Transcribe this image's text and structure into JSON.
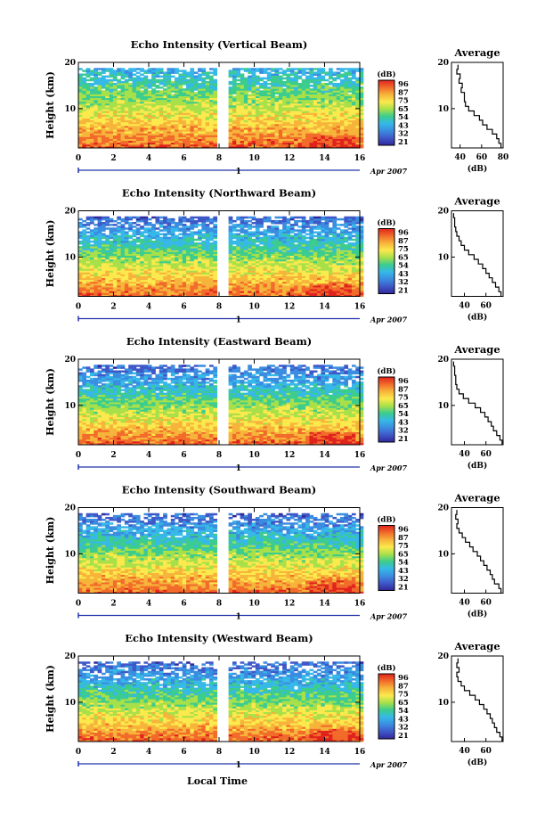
{
  "figure": {
    "xlabel": "Local Time",
    "date_label": "Apr 2007",
    "day_marker_label": "1",
    "colorbar": {
      "unit_label": "(dB)",
      "tick_labels": [
        "96",
        "87",
        "75",
        "65",
        "54",
        "43",
        "32",
        "21"
      ],
      "colors": [
        "#e0231d",
        "#f26b2a",
        "#f7b43b",
        "#fce94d",
        "#a8e04a",
        "#3ccc8e",
        "#36b8e8",
        "#3a8de0",
        "#3f58c8",
        "#30279a"
      ],
      "gradient_stops": [
        "#30279a",
        "#3f58c8",
        "#3a8de0",
        "#36b8e8",
        "#3ccc8e",
        "#a8e04a",
        "#fce94d",
        "#f7b43b",
        "#f26b2a",
        "#e0231d"
      ]
    }
  },
  "chart_data": [
    {
      "type": "heatmap",
      "title": "Echo Intensity (Vertical Beam)",
      "xlabel": "",
      "ylabel": "Height (km)",
      "x_range": [
        0,
        16
      ],
      "y_range": [
        1.5,
        20
      ],
      "x_ticks": [
        0,
        2,
        4,
        6,
        8,
        10,
        12,
        14,
        16
      ],
      "x_tick_labels": [
        "0",
        "2",
        "4",
        "6",
        "8",
        "10",
        "12",
        "14",
        "16"
      ],
      "y_ticks": [
        10,
        20
      ],
      "y_tick_labels": [
        "10",
        "20"
      ],
      "data_x_range": [
        0,
        16.2
      ],
      "data_gap_x": [
        7.95,
        8.4
      ],
      "colorbar_range": [
        21,
        96
      ],
      "profile": {
        "title": "Average",
        "xlabel": "(dB)",
        "x_range": [
          32,
          80
        ],
        "x_ticks": [
          40,
          60,
          80
        ],
        "x_tick_labels": [
          "40",
          "60",
          "80"
        ],
        "y_ticks": [
          10,
          20
        ],
        "y_tick_labels": [
          "10",
          "20"
        ],
        "heights": [
          19,
          18,
          17,
          16,
          15,
          14,
          13,
          12,
          11,
          10,
          9,
          8,
          7,
          6,
          5,
          4,
          3,
          2
        ],
        "values": [
          38,
          37,
          40,
          39,
          42,
          41,
          44,
          44,
          45,
          48,
          53,
          58,
          61,
          65,
          70,
          74,
          76,
          78
        ]
      }
    },
    {
      "type": "heatmap",
      "title": "Echo Intensity (Northward Beam)",
      "xlabel": "",
      "ylabel": "Height (km)",
      "x_range": [
        0,
        16
      ],
      "y_range": [
        1.5,
        20
      ],
      "x_ticks": [
        0,
        2,
        4,
        6,
        8,
        10,
        12,
        14,
        16
      ],
      "x_tick_labels": [
        "0",
        "2",
        "4",
        "6",
        "8",
        "10",
        "12",
        "14",
        "16"
      ],
      "y_ticks": [
        10,
        20
      ],
      "y_tick_labels": [
        "10",
        "20"
      ],
      "data_x_range": [
        0,
        16.2
      ],
      "data_gap_x": [
        7.95,
        8.4
      ],
      "colorbar_range": [
        21,
        96
      ],
      "profile": {
        "title": "Average",
        "xlabel": "(dB)",
        "x_range": [
          28,
          76
        ],
        "x_ticks": [
          40,
          60
        ],
        "x_tick_labels": [
          "40",
          "60"
        ],
        "y_ticks": [
          10,
          20
        ],
        "y_tick_labels": [
          "10",
          "20"
        ],
        "heights": [
          19,
          18,
          17,
          16,
          15,
          14,
          13,
          12,
          11,
          10,
          9,
          8,
          7,
          6,
          5,
          4,
          3,
          2
        ],
        "values": [
          30,
          31,
          31,
          32,
          33,
          35,
          37,
          40,
          44,
          49,
          53,
          57,
          60,
          63,
          66,
          69,
          72,
          74
        ]
      }
    },
    {
      "type": "heatmap",
      "title": "Echo Intensity (Eastward Beam)",
      "xlabel": "",
      "ylabel": "Height (km)",
      "x_range": [
        0,
        16
      ],
      "y_range": [
        1.5,
        20
      ],
      "x_ticks": [
        0,
        2,
        4,
        6,
        8,
        10,
        12,
        14,
        16
      ],
      "x_tick_labels": [
        "0",
        "2",
        "4",
        "6",
        "8",
        "10",
        "12",
        "14",
        "16"
      ],
      "y_ticks": [
        10,
        20
      ],
      "y_tick_labels": [
        "10",
        "20"
      ],
      "data_x_range": [
        0,
        16.2
      ],
      "data_gap_x": [
        7.95,
        8.4
      ],
      "colorbar_range": [
        21,
        96
      ],
      "profile": {
        "title": "Average",
        "xlabel": "(dB)",
        "x_range": [
          28,
          76
        ],
        "x_ticks": [
          40,
          60
        ],
        "x_tick_labels": [
          "40",
          "60"
        ],
        "y_ticks": [
          10,
          20
        ],
        "y_tick_labels": [
          "10",
          "20"
        ],
        "heights": [
          19,
          18,
          17,
          16,
          15,
          14,
          13,
          12,
          11,
          10,
          9,
          8,
          7,
          6,
          5,
          4,
          3,
          2
        ],
        "values": [
          30,
          31,
          31,
          32,
          32,
          33,
          35,
          39,
          44,
          50,
          55,
          59,
          62,
          65,
          67,
          70,
          73,
          75
        ]
      }
    },
    {
      "type": "heatmap",
      "title": "Echo Intensity (Southward Beam)",
      "xlabel": "",
      "ylabel": "Height (km)",
      "x_range": [
        0,
        16
      ],
      "y_range": [
        1.5,
        20
      ],
      "x_ticks": [
        0,
        2,
        4,
        6,
        8,
        10,
        12,
        14,
        16
      ],
      "x_tick_labels": [
        "0",
        "2",
        "4",
        "6",
        "8",
        "10",
        "12",
        "14",
        "16"
      ],
      "y_ticks": [
        10,
        20
      ],
      "y_tick_labels": [
        "10",
        "20"
      ],
      "data_x_range": [
        0,
        16.2
      ],
      "data_gap_x": [
        7.95,
        8.4
      ],
      "colorbar_range": [
        21,
        96
      ],
      "profile": {
        "title": "Average",
        "xlabel": "(dB)",
        "x_range": [
          28,
          76
        ],
        "x_ticks": [
          40,
          60
        ],
        "x_tick_labels": [
          "40",
          "60"
        ],
        "y_ticks": [
          10,
          20
        ],
        "y_tick_labels": [
          "10",
          "20"
        ],
        "heights": [
          19,
          18,
          17,
          16,
          15,
          14,
          13,
          12,
          11,
          10,
          9,
          8,
          7,
          6,
          5,
          4,
          3,
          2
        ],
        "values": [
          33,
          32,
          34,
          33,
          35,
          38,
          41,
          45,
          48,
          52,
          55,
          58,
          61,
          64,
          66,
          68,
          72,
          74
        ]
      }
    },
    {
      "type": "heatmap",
      "title": "Echo Intensity (Westward Beam)",
      "xlabel": "",
      "ylabel": "Height (km)",
      "x_range": [
        0,
        16
      ],
      "y_range": [
        1.5,
        20
      ],
      "x_ticks": [
        0,
        2,
        4,
        6,
        8,
        10,
        12,
        14,
        16
      ],
      "x_tick_labels": [
        "0",
        "2",
        "4",
        "6",
        "8",
        "10",
        "12",
        "14",
        "16"
      ],
      "y_ticks": [
        10,
        20
      ],
      "y_tick_labels": [
        "10",
        "20"
      ],
      "data_x_range": [
        0,
        16.2
      ],
      "data_gap_x": [
        7.95,
        8.4
      ],
      "colorbar_range": [
        21,
        96
      ],
      "profile": {
        "title": "Average",
        "xlabel": "(dB)",
        "x_range": [
          28,
          76
        ],
        "x_ticks": [
          40,
          60
        ],
        "x_tick_labels": [
          "40",
          "60"
        ],
        "y_ticks": [
          10,
          20
        ],
        "y_tick_labels": [
          "10",
          "20"
        ],
        "heights": [
          19,
          18,
          17,
          16,
          15,
          14,
          13,
          12,
          11,
          10,
          9,
          8,
          7,
          6,
          5,
          4,
          3,
          2
        ],
        "values": [
          34,
          33,
          35,
          33,
          34,
          37,
          40,
          45,
          50,
          54,
          58,
          61,
          64,
          66,
          68,
          70,
          73,
          75
        ]
      }
    }
  ]
}
